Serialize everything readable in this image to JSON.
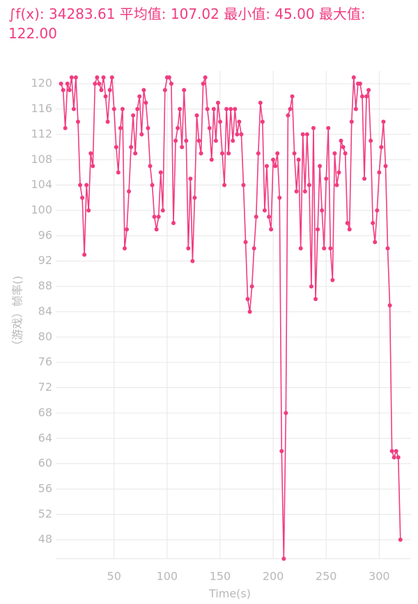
{
  "chart_data": {
    "type": "line",
    "title": "∫f(x): 34283.61 平均值: 107.02 最小值: 45.00 最大值: 122.00",
    "x_label": "Time(s)",
    "y_label": "（游戏）帧率()",
    "color": "#f03c80",
    "grid": true,
    "xlim": [
      -5,
      330
    ],
    "xticks": [
      50,
      100,
      150,
      200,
      250,
      300
    ],
    "ylim": [
      45,
      122
    ],
    "yticks": [
      48,
      52,
      56,
      60,
      64,
      68,
      72,
      76,
      80,
      84,
      88,
      92,
      96,
      100,
      104,
      108,
      112,
      116,
      120
    ],
    "x": [
      0,
      2,
      4,
      6,
      8,
      10,
      12,
      14,
      16,
      18,
      20,
      22,
      24,
      26,
      28,
      30,
      32,
      34,
      36,
      38,
      40,
      42,
      44,
      46,
      48,
      50,
      52,
      54,
      56,
      58,
      60,
      62,
      64,
      66,
      68,
      70,
      72,
      74,
      76,
      78,
      80,
      82,
      84,
      86,
      88,
      90,
      92,
      94,
      96,
      98,
      100,
      102,
      104,
      106,
      108,
      110,
      112,
      114,
      116,
      118,
      120,
      122,
      124,
      126,
      128,
      130,
      132,
      134,
      136,
      138,
      140,
      142,
      144,
      146,
      148,
      150,
      152,
      154,
      156,
      158,
      160,
      162,
      164,
      166,
      168,
      170,
      172,
      174,
      176,
      178,
      180,
      182,
      184,
      186,
      188,
      190,
      192,
      194,
      196,
      198,
      200,
      202,
      204,
      206,
      208,
      210,
      212,
      214,
      216,
      218,
      220,
      222,
      224,
      226,
      228,
      230,
      232,
      234,
      236,
      238,
      240,
      242,
      244,
      246,
      248,
      250,
      252,
      254,
      256,
      258,
      260,
      262,
      264,
      266,
      268,
      270,
      272,
      274,
      276,
      278,
      280,
      282,
      284,
      286,
      288,
      290,
      292,
      294,
      296,
      298,
      300,
      302,
      304,
      306,
      308,
      310,
      312,
      314,
      316,
      318,
      320
    ],
    "values": [
      120,
      119,
      113,
      120,
      119,
      121,
      116,
      121,
      114,
      104,
      102,
      93,
      104,
      100,
      109,
      107,
      120,
      121,
      120,
      119,
      121,
      118,
      114,
      119,
      121,
      116,
      110,
      106,
      113,
      116,
      94,
      97,
      103,
      110,
      115,
      109,
      116,
      118,
      112,
      119,
      117,
      113,
      107,
      104,
      99,
      97,
      99,
      106,
      100,
      119,
      121,
      121,
      120,
      98,
      111,
      113,
      116,
      110,
      119,
      111,
      94,
      105,
      92,
      102,
      115,
      111,
      109,
      120,
      121,
      116,
      113,
      108,
      116,
      111,
      117,
      114,
      109,
      104,
      116,
      109,
      116,
      111,
      116,
      112,
      114,
      112,
      104,
      95,
      86,
      84,
      88,
      94,
      99,
      109,
      117,
      114,
      100,
      107,
      99,
      97,
      108,
      107,
      109,
      102,
      62,
      45,
      68,
      115,
      116,
      118,
      109,
      103,
      108,
      94,
      112,
      103,
      112,
      104,
      88,
      113,
      86,
      97,
      107,
      100,
      94,
      105,
      113,
      94,
      89,
      109,
      104,
      106,
      111,
      110,
      109,
      98,
      97,
      114,
      121,
      116,
      120,
      120,
      118,
      105,
      118,
      119,
      111,
      98,
      95,
      100,
      106,
      110,
      114,
      107,
      94,
      85,
      62,
      61,
      62,
      61,
      48
    ]
  }
}
